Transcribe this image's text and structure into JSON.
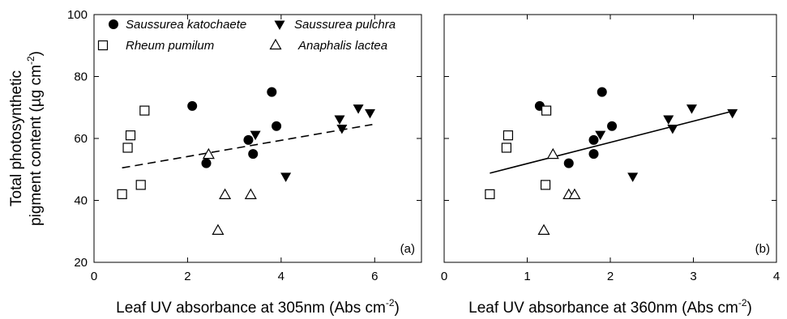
{
  "chart_data": [
    {
      "type": "scatter",
      "panel_label": "(a)",
      "xlabel": "Leaf UV absorbance at 305nm (Abs cm",
      "xlabel_unit_exp": "-2",
      "xlabel_close": ")",
      "ylabel_line1": "Total photosynthetic",
      "ylabel_line2": "pigment content (µg cm",
      "ylabel_unit_exp": "-2",
      "ylabel_close": ")",
      "xlim": [
        0,
        7
      ],
      "ylim": [
        20,
        100
      ],
      "xticks": [
        0,
        2,
        4,
        6
      ],
      "yticks": [
        20,
        40,
        60,
        80,
        100
      ],
      "legend": [
        {
          "name": "Saussurea katochaete",
          "marker": "filled-circle"
        },
        {
          "name": "Rheum pumilum",
          "marker": "open-square"
        },
        {
          "name": "Saussurea pulchra",
          "marker": "filled-triangle-down"
        },
        {
          "name": "Anaphalis lactea",
          "marker": "open-triangle-up"
        }
      ],
      "series": [
        {
          "name": "Saussurea katochaete",
          "marker": "filled-circle",
          "points": [
            [
              2.1,
              70.5
            ],
            [
              2.4,
              52.0
            ],
            [
              3.3,
              59.5
            ],
            [
              3.4,
              55.0
            ],
            [
              3.8,
              75.0
            ],
            [
              3.9,
              64.0
            ]
          ]
        },
        {
          "name": "Rheum pumilum",
          "marker": "open-square",
          "points": [
            [
              0.6,
              42.0
            ],
            [
              0.72,
              57.0
            ],
            [
              0.78,
              61.0
            ],
            [
              1.0,
              45.0
            ],
            [
              1.08,
              69.0
            ]
          ]
        },
        {
          "name": "Saussurea pulchra",
          "marker": "filled-triangle-down",
          "points": [
            [
              3.45,
              61.0
            ],
            [
              4.1,
              47.5
            ],
            [
              5.25,
              66.0
            ],
            [
              5.3,
              63.0
            ],
            [
              5.65,
              69.5
            ],
            [
              5.9,
              68.0
            ]
          ]
        },
        {
          "name": "Anaphalis lactea",
          "marker": "open-triangle-up",
          "points": [
            [
              2.45,
              55.0
            ],
            [
              2.65,
              30.5
            ],
            [
              2.8,
              42.0
            ],
            [
              3.35,
              42.0
            ]
          ]
        }
      ],
      "trendline": {
        "style": "dashed",
        "from": [
          0.6,
          50.5
        ],
        "to": [
          5.95,
          64.5
        ]
      }
    },
    {
      "type": "scatter",
      "panel_label": "(b)",
      "xlabel": "Leaf UV absorbance at 360nm (Abs cm",
      "xlabel_unit_exp": "-2",
      "xlabel_close": ")",
      "xlim": [
        0,
        4
      ],
      "ylim": [
        20,
        100
      ],
      "xticks": [
        0,
        1,
        2,
        3,
        4
      ],
      "yticks": [
        20,
        40,
        60,
        80,
        100
      ],
      "series": [
        {
          "name": "Saussurea katochaete",
          "marker": "filled-circle",
          "points": [
            [
              1.15,
              70.5
            ],
            [
              1.5,
              52.0
            ],
            [
              1.8,
              59.5
            ],
            [
              1.8,
              55.0
            ],
            [
              1.9,
              75.0
            ],
            [
              2.02,
              64.0
            ]
          ]
        },
        {
          "name": "Rheum pumilum",
          "marker": "open-square",
          "points": [
            [
              0.55,
              42.0
            ],
            [
              0.75,
              57.0
            ],
            [
              0.77,
              61.0
            ],
            [
              1.22,
              45.0
            ],
            [
              1.23,
              69.0
            ]
          ]
        },
        {
          "name": "Saussurea pulchra",
          "marker": "filled-triangle-down",
          "points": [
            [
              1.88,
              61.0
            ],
            [
              2.27,
              47.5
            ],
            [
              2.7,
              66.0
            ],
            [
              2.75,
              63.0
            ],
            [
              2.98,
              69.5
            ],
            [
              3.47,
              68.0
            ]
          ]
        },
        {
          "name": "Anaphalis lactea",
          "marker": "open-triangle-up",
          "points": [
            [
              1.31,
              55.0
            ],
            [
              1.2,
              30.5
            ],
            [
              1.5,
              42.0
            ],
            [
              1.57,
              42.0
            ]
          ]
        }
      ],
      "trendline": {
        "style": "solid",
        "from": [
          0.55,
          48.8
        ],
        "to": [
          3.47,
          68.8
        ]
      }
    }
  ]
}
